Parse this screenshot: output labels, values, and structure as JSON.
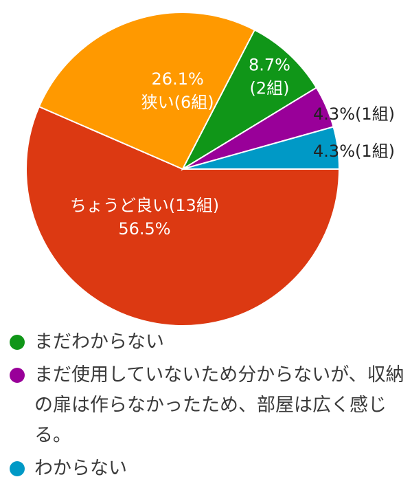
{
  "chart_data": {
    "type": "pie",
    "slices": [
      {
        "label": "ちょうど良い(13組)",
        "percent_label": "56.5%",
        "value": 13,
        "percent": 56.5,
        "color": "#dc3912"
      },
      {
        "label": "狭い(6組)",
        "percent_label": "26.1%",
        "value": 6,
        "percent": 26.1,
        "color": "#ff9900"
      },
      {
        "label": "(2組)",
        "percent_label": "8.7%",
        "value": 2,
        "percent": 8.7,
        "color": "#109618"
      },
      {
        "label": "(1組)",
        "percent_label": "4.3%",
        "value": 1,
        "percent": 4.3,
        "color": "#990099"
      },
      {
        "label": "(1組)",
        "percent_label": "4.3%",
        "value": 1,
        "percent": 4.3,
        "color": "#0099c6"
      }
    ]
  },
  "legend": [
    {
      "label": "まだわからない",
      "color": "#109618"
    },
    {
      "label": "まだ使用していないため分からないが、収納の扉は作らなかったため、部屋は広く感じる。",
      "color": "#990099"
    },
    {
      "label": "わからない",
      "color": "#0099c6"
    }
  ]
}
